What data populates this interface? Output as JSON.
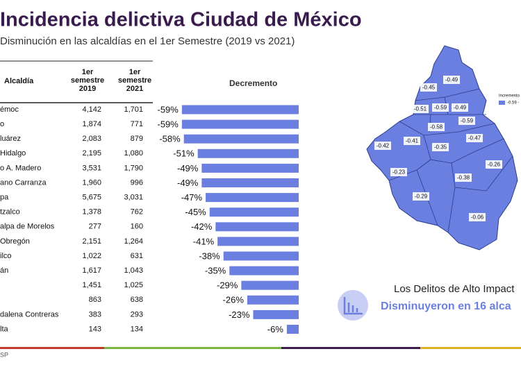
{
  "title": "Incidencia delictiva Ciudad de México",
  "subtitle": "Disminución en las alcaldías en el 1er Semestre (2019 vs 2021)",
  "table": {
    "headers": [
      "Alcaldía",
      [
        "1er",
        "semestre",
        "2019"
      ],
      [
        "1er",
        "semestre",
        "2021"
      ]
    ],
    "rows": [
      [
        "émoc",
        "4,142",
        "1,701"
      ],
      [
        "o",
        "1,874",
        "771"
      ],
      [
        "luárez",
        "2,083",
        "879"
      ],
      [
        "Hidalgo",
        "2,195",
        "1,080"
      ],
      [
        "o A. Madero",
        "3,531",
        "1,790"
      ],
      [
        "ano Carranza",
        "1,960",
        "996"
      ],
      [
        "pa",
        "5,675",
        "3,031"
      ],
      [
        "tzalco",
        "1,378",
        "762"
      ],
      [
        "alpa de Morelos",
        "277",
        "160"
      ],
      [
        "Obregón",
        "2,151",
        "1,264"
      ],
      [
        "ilco",
        "1,022",
        "631"
      ],
      [
        "án",
        "1,617",
        "1,043"
      ],
      [
        null,
        "1,451",
        "1,025"
      ],
      [
        null,
        "863",
        "638"
      ],
      [
        "dalena Contreras",
        "383",
        "293"
      ],
      [
        "lta",
        "143",
        "134"
      ]
    ]
  },
  "chart_data": {
    "type": "bar",
    "orientation": "horizontal",
    "title": "Decremento",
    "values": [
      -59,
      -59,
      -58,
      -51,
      -49,
      -49,
      -47,
      -45,
      -42,
      -41,
      -38,
      -35,
      -29,
      -26,
      -23,
      -6
    ],
    "value_labels": [
      "-59%",
      "-59%",
      "-58%",
      "-51%",
      "-49%",
      "-49%",
      "-47%",
      "-45%",
      "-42%",
      "-41%",
      "-38%",
      "-35%",
      "-29%",
      "-26%",
      "-23%",
      "-6%"
    ],
    "color": "#6b7fe0",
    "xlim": [
      -60,
      0
    ]
  },
  "map": {
    "color": "#6b7fe0",
    "legend_title": "Incremento",
    "legend_item": "-0.59 -",
    "labels": [
      -0.49,
      -0.45,
      -0.51,
      -0.59,
      -0.49,
      -0.58,
      -0.59,
      -0.47,
      -0.41,
      -0.35,
      -0.42,
      -0.23,
      -0.26,
      -0.38,
      -0.29,
      -0.06
    ]
  },
  "callout": {
    "line1": "Los Delitos de Alto Impact",
    "line2": "Disminuyeron en 16 alca"
  },
  "footer": "SP"
}
